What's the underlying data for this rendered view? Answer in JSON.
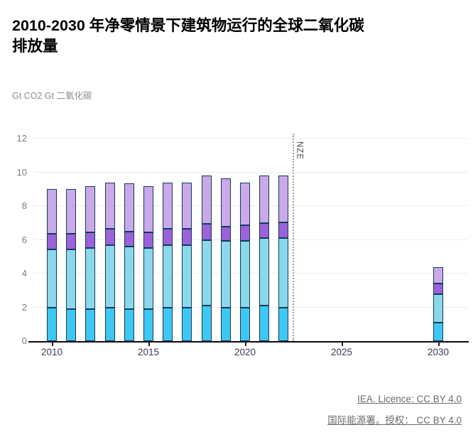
{
  "header": {
    "title": "2010-2030 年净零情景下建筑物运行的全球二氧化碳排放量",
    "unit_label": "Gt CO2 Gt 二氧化碳"
  },
  "chart_data": {
    "type": "bar",
    "stacked": true,
    "title": "2010-2030 年净零情景下建筑物运行的全球二氧化碳排放量",
    "ylabel": "Gt CO2 Gt 二氧化碳",
    "ylim": [
      0,
      12
    ],
    "yticks": [
      0,
      2,
      4,
      6,
      8,
      10,
      12
    ],
    "xticks": [
      2010,
      2015,
      2020,
      2025,
      2030
    ],
    "grid": true,
    "legend": "none",
    "annotation": {
      "label": "NZE",
      "x": 2022.45
    },
    "years": [
      2010,
      2011,
      2012,
      2013,
      2014,
      2015,
      2016,
      2017,
      2018,
      2019,
      2020,
      2021,
      2022,
      2030
    ],
    "totals": [
      9.0,
      9.0,
      9.2,
      9.4,
      9.35,
      9.2,
      9.4,
      9.4,
      9.8,
      9.65,
      9.4,
      9.8,
      9.8,
      4.4
    ],
    "series": [
      {
        "name": "segment-1-bright-blue",
        "color": "#3ec7f3",
        "values": [
          2.0,
          1.9,
          1.9,
          2.0,
          1.9,
          1.9,
          2.0,
          2.0,
          2.1,
          2.0,
          2.0,
          2.1,
          2.0,
          1.1
        ]
      },
      {
        "name": "segment-2-light-cyan",
        "color": "#8bd7ec",
        "values": [
          3.45,
          3.55,
          3.6,
          3.7,
          3.7,
          3.6,
          3.7,
          3.7,
          3.9,
          3.95,
          3.95,
          4.0,
          4.1,
          1.7
        ]
      },
      {
        "name": "segment-3-purple",
        "color": "#9b62da",
        "values": [
          0.9,
          0.9,
          0.95,
          0.95,
          0.9,
          0.95,
          0.95,
          0.95,
          0.95,
          0.85,
          0.9,
          0.9,
          0.95,
          0.6
        ]
      },
      {
        "name": "segment-4-lavender",
        "color": "#c9a9ea",
        "values": [
          2.65,
          2.65,
          2.75,
          2.75,
          2.85,
          2.75,
          2.75,
          2.75,
          2.85,
          2.85,
          2.55,
          2.8,
          2.75,
          1.0
        ]
      }
    ],
    "bar_outline": "#123c55"
  },
  "footer": {
    "licence_en": "IEA. Licence: CC BY 4.0",
    "licence_zh": "国际能源署。授权： CC BY 4.0"
  },
  "colors": {
    "gridline": "#ececec",
    "axis": "#0a0a0a",
    "y_label": "#7b7b86",
    "x_label": "#3b3b52",
    "nze_line": "#9aa0a6",
    "footer_link": "#6b6b6b"
  }
}
